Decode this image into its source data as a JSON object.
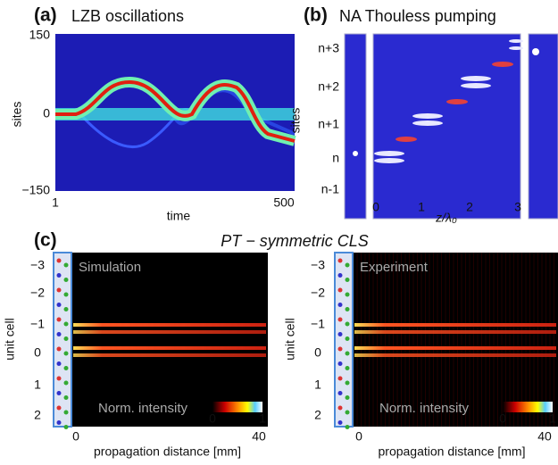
{
  "panels": [
    {
      "label": "(a)",
      "title": "LZB oscillations",
      "y_label": "sites",
      "x_label": "time",
      "y_ticks": [
        "150",
        "0",
        "−150"
      ],
      "x_ticks": [
        "1",
        "500"
      ]
    },
    {
      "label": "(b)",
      "title": "NA Thouless pumping",
      "y_label": "sites",
      "x_label": "z/λ₀",
      "y_ticks": [
        "n+3",
        "n+2",
        "n+1",
        "n",
        "n-1"
      ],
      "x_ticks": [
        "0",
        "1",
        "2",
        "3"
      ]
    },
    {
      "label": "(c)",
      "title": "PT − symmetric CLS",
      "subpanels": [
        {
          "tag": "Simulation",
          "y_label": "unit cell",
          "x_label": "propagation distance [mm]",
          "y_ticks": [
            "−3",
            "−2",
            "−1",
            "0",
            "1",
            "2"
          ],
          "x_ticks": [
            "0",
            "40"
          ],
          "colorbar_label": "Norm. intensity",
          "colorbar_ticks": [
            "0",
            "1"
          ]
        },
        {
          "tag": "Experiment",
          "y_label": "unit cell",
          "x_label": "propagation distance [mm]",
          "y_ticks": [
            "−3",
            "−2",
            "−1",
            "0",
            "1",
            "2"
          ],
          "x_ticks": [
            "0",
            "40"
          ],
          "colorbar_label": "Norm. intensity",
          "colorbar_ticks": [
            "0",
            "1"
          ]
        }
      ]
    }
  ]
}
